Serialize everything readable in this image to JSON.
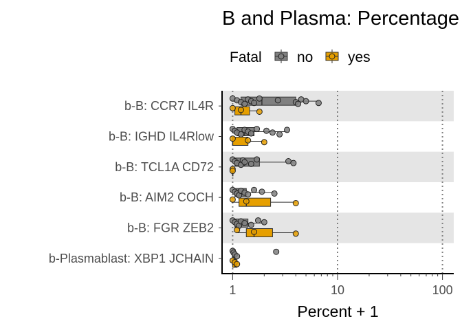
{
  "chart_data": {
    "type": "boxplot",
    "orientation": "horizontal",
    "title": "B and Plasma: Percentage",
    "xlabel": "Percent + 1",
    "ylabel": "",
    "x_scale": "log10",
    "xlim": [
      0.9,
      110
    ],
    "x_ticks": [
      1,
      10,
      100
    ],
    "x_tick_labels": [
      "1",
      "10",
      "100"
    ],
    "grid": "dotted vertical lines at 1, 10, 100",
    "legend": {
      "title": "Fatal",
      "position": "top",
      "entries": [
        "no",
        "yes"
      ]
    },
    "colors": {
      "no": "#808080",
      "yes": "#E69F00",
      "band": "#e5e5e5"
    },
    "categories": [
      "b-B: CCR7 IL4R",
      "b-B: IGHD IL4Rlow",
      "b-B: TCL1A CD72",
      "b-B: AIM2 COCH",
      "b-B: FGR ZEB2",
      "b-Plasmablast: XBP1 JCHAIN"
    ],
    "series": [
      {
        "name": "no",
        "boxes": [
          {
            "min": 1.0,
            "q1": 1.2,
            "median": 1.9,
            "q3": 4.0,
            "max": 6.6,
            "points": [
              1.0,
              1.1,
              1.2,
              1.3,
              1.4,
              1.5,
              1.6,
              1.8,
              2.7,
              4.0,
              4.2,
              4.5,
              5.0,
              6.6
            ]
          },
          {
            "min": 1.0,
            "q1": 1.1,
            "median": 1.3,
            "q3": 1.6,
            "max": 3.3,
            "points": [
              1.0,
              1.05,
              1.1,
              1.2,
              1.3,
              1.4,
              1.5,
              1.7,
              2.1,
              2.4,
              2.8,
              3.3
            ]
          },
          {
            "min": 1.0,
            "q1": 1.05,
            "median": 1.3,
            "q3": 1.8,
            "max": 3.8,
            "points": [
              1.0,
              1.05,
              1.1,
              1.2,
              1.25,
              1.3,
              1.5,
              1.7,
              3.4,
              3.8
            ]
          },
          {
            "min": 1.0,
            "q1": 1.05,
            "median": 1.15,
            "q3": 1.35,
            "max": 2.5,
            "points": [
              1.0,
              1.05,
              1.1,
              1.15,
              1.2,
              1.3,
              1.4,
              1.6,
              1.9,
              2.5
            ]
          },
          {
            "min": 1.0,
            "q1": 1.05,
            "median": 1.2,
            "q3": 1.4,
            "max": 2.0,
            "points": [
              1.0,
              1.05,
              1.1,
              1.15,
              1.2,
              1.3,
              1.5,
              1.75,
              2.0
            ]
          },
          {
            "min": 1.0,
            "q1": 1.0,
            "median": 1.03,
            "q3": 1.06,
            "max": 1.1,
            "points": [
              1.0,
              1.02,
              1.05,
              1.1,
              2.6
            ]
          }
        ]
      },
      {
        "name": "yes",
        "boxes": [
          {
            "min": 1.0,
            "q1": 1.05,
            "median": 1.2,
            "q3": 1.45,
            "max": 1.8,
            "points": [
              1.0,
              1.2,
              1.8
            ]
          },
          {
            "min": 1.0,
            "q1": 1.0,
            "median": 1.0,
            "q3": 1.4,
            "max": 2.0,
            "points": [
              1.0,
              1.4,
              2.0
            ]
          },
          {
            "min": 1.0,
            "q1": 1.0,
            "median": 1.0,
            "q3": 1.0,
            "max": 1.0,
            "points": [
              1.0,
              1.0
            ]
          },
          {
            "min": 1.0,
            "q1": 1.15,
            "median": 1.35,
            "q3": 2.3,
            "max": 4.0,
            "points": [
              1.0,
              1.35,
              4.0
            ]
          },
          {
            "min": 1.1,
            "q1": 1.35,
            "median": 1.6,
            "q3": 2.4,
            "max": 4.0,
            "points": [
              1.1,
              1.6,
              4.0
            ]
          },
          {
            "min": 1.0,
            "q1": 1.0,
            "median": 1.05,
            "q3": 1.1,
            "max": 1.15,
            "points": [
              1.0,
              1.05,
              1.1
            ]
          }
        ]
      }
    ]
  }
}
